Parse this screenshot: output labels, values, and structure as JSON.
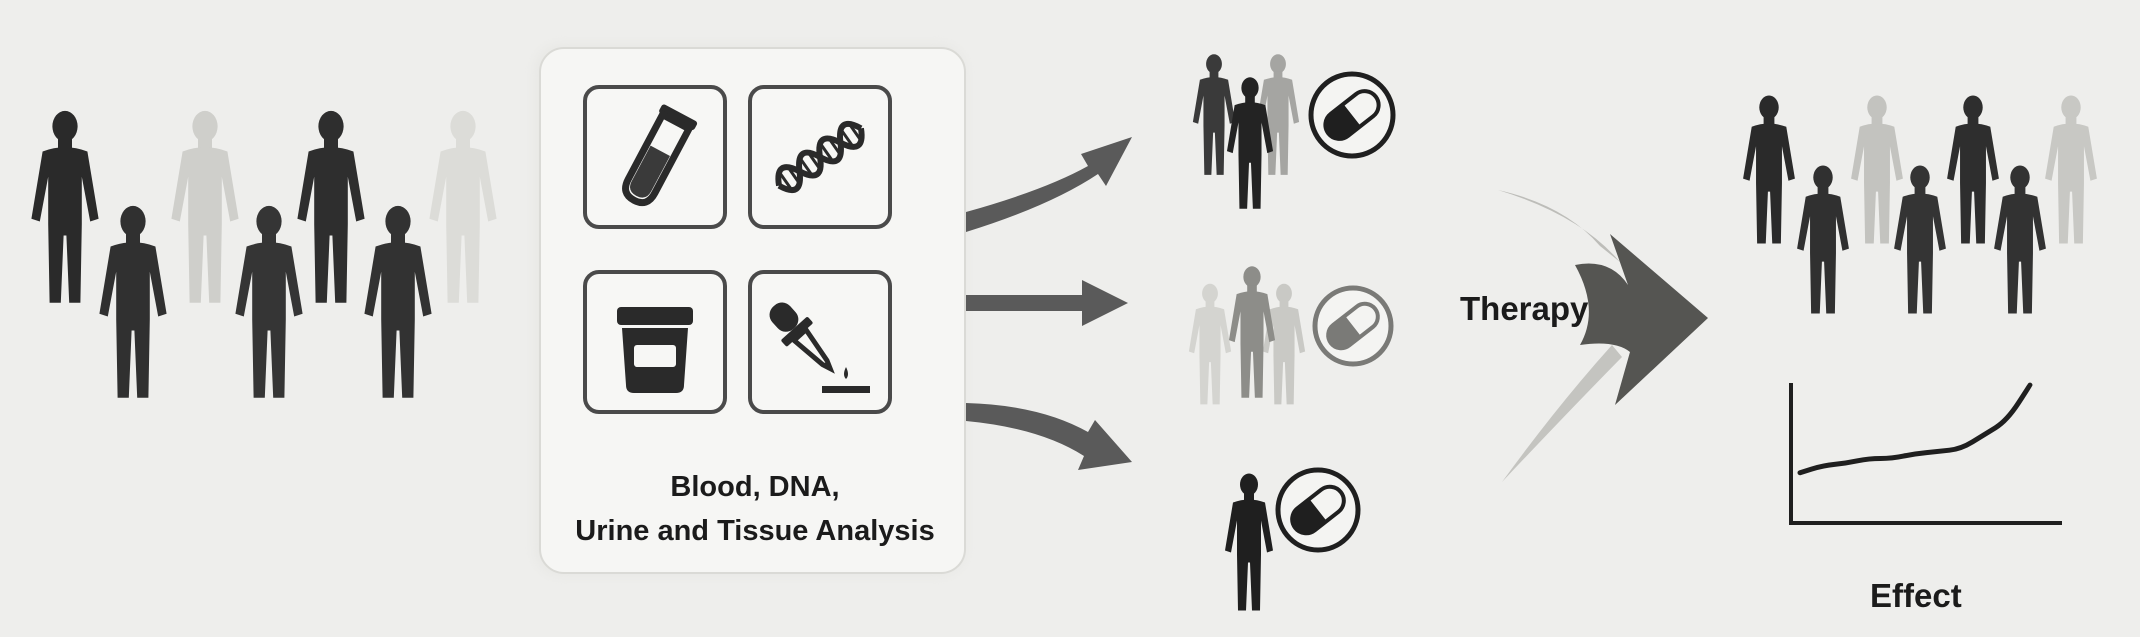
{
  "labels": {
    "analysis_line1": "Blood, DNA,",
    "analysis_line2": "Urine and Tissue Analysis",
    "therapy": "Therapy",
    "effect": "Effect"
  },
  "icons": [
    "test-tube-icon",
    "dna-icon",
    "urine-container-icon",
    "dropper-icon",
    "pill-icon"
  ],
  "colors": {
    "background": "#eeeeec",
    "figure_dark": "#2a2a2a",
    "figure_light": "#d9d9d6",
    "panel": "#f6f6f4",
    "ink": "#1b1b1b"
  },
  "chart_data": {
    "type": "line",
    "x": [
      0,
      1,
      2,
      3,
      4,
      5,
      6,
      7,
      8,
      9,
      10
    ],
    "series": [
      {
        "values": [
          2.0,
          2.3,
          2.4,
          2.6,
          2.6,
          2.8,
          2.9,
          3.0,
          3.6,
          4.2,
          5.7
        ]
      }
    ],
    "title": "",
    "xlabel": "",
    "ylabel": "",
    "grid": false
  }
}
